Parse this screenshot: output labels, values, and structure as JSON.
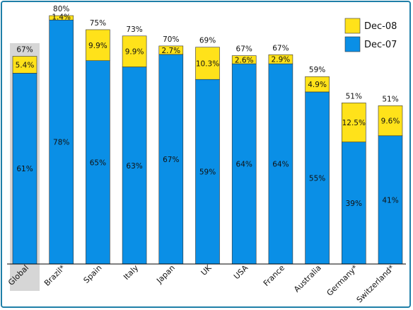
{
  "chart_data": {
    "type": "bar",
    "stacked": true,
    "title": "",
    "xlabel": "",
    "ylabel": "",
    "ylim": [
      0,
      80
    ],
    "grid": false,
    "legend_position": "top-right",
    "categories": [
      "Global",
      "Brazil*",
      "Spain",
      "Italy",
      "Japan",
      "UK",
      "USA",
      "France",
      "Australia",
      "Germany*",
      "Switzerland*"
    ],
    "highlight_category": "Global",
    "series": [
      {
        "name": "Dec-07",
        "color": "#0a8fe6",
        "values": [
          61,
          78,
          65,
          63,
          67,
          59,
          64,
          64,
          55,
          39,
          41
        ],
        "labels": [
          "61%",
          "78%",
          "65%",
          "63%",
          "67%",
          "59%",
          "64%",
          "64%",
          "55%",
          "39%",
          "41%"
        ]
      },
      {
        "name": "Dec-08",
        "color": "#ffe21a",
        "values": [
          5.4,
          1.4,
          9.9,
          9.9,
          2.7,
          10.3,
          2.6,
          2.9,
          4.9,
          12.5,
          9.6
        ],
        "labels": [
          "5.4%",
          "1.4%",
          "9.9%",
          "9.9%",
          "2.7%",
          "10.3%",
          "2.6%",
          "2.9%",
          "4.9%",
          "12.5%",
          "9.6%"
        ]
      }
    ],
    "totals": [
      "67%",
      "80%",
      "75%",
      "73%",
      "70%",
      "69%",
      "67%",
      "67%",
      "59%",
      "51%",
      "51%"
    ],
    "legend": [
      {
        "label": "Dec-08",
        "color": "#ffe21a"
      },
      {
        "label": "Dec-07",
        "color": "#0a8fe6"
      }
    ]
  }
}
